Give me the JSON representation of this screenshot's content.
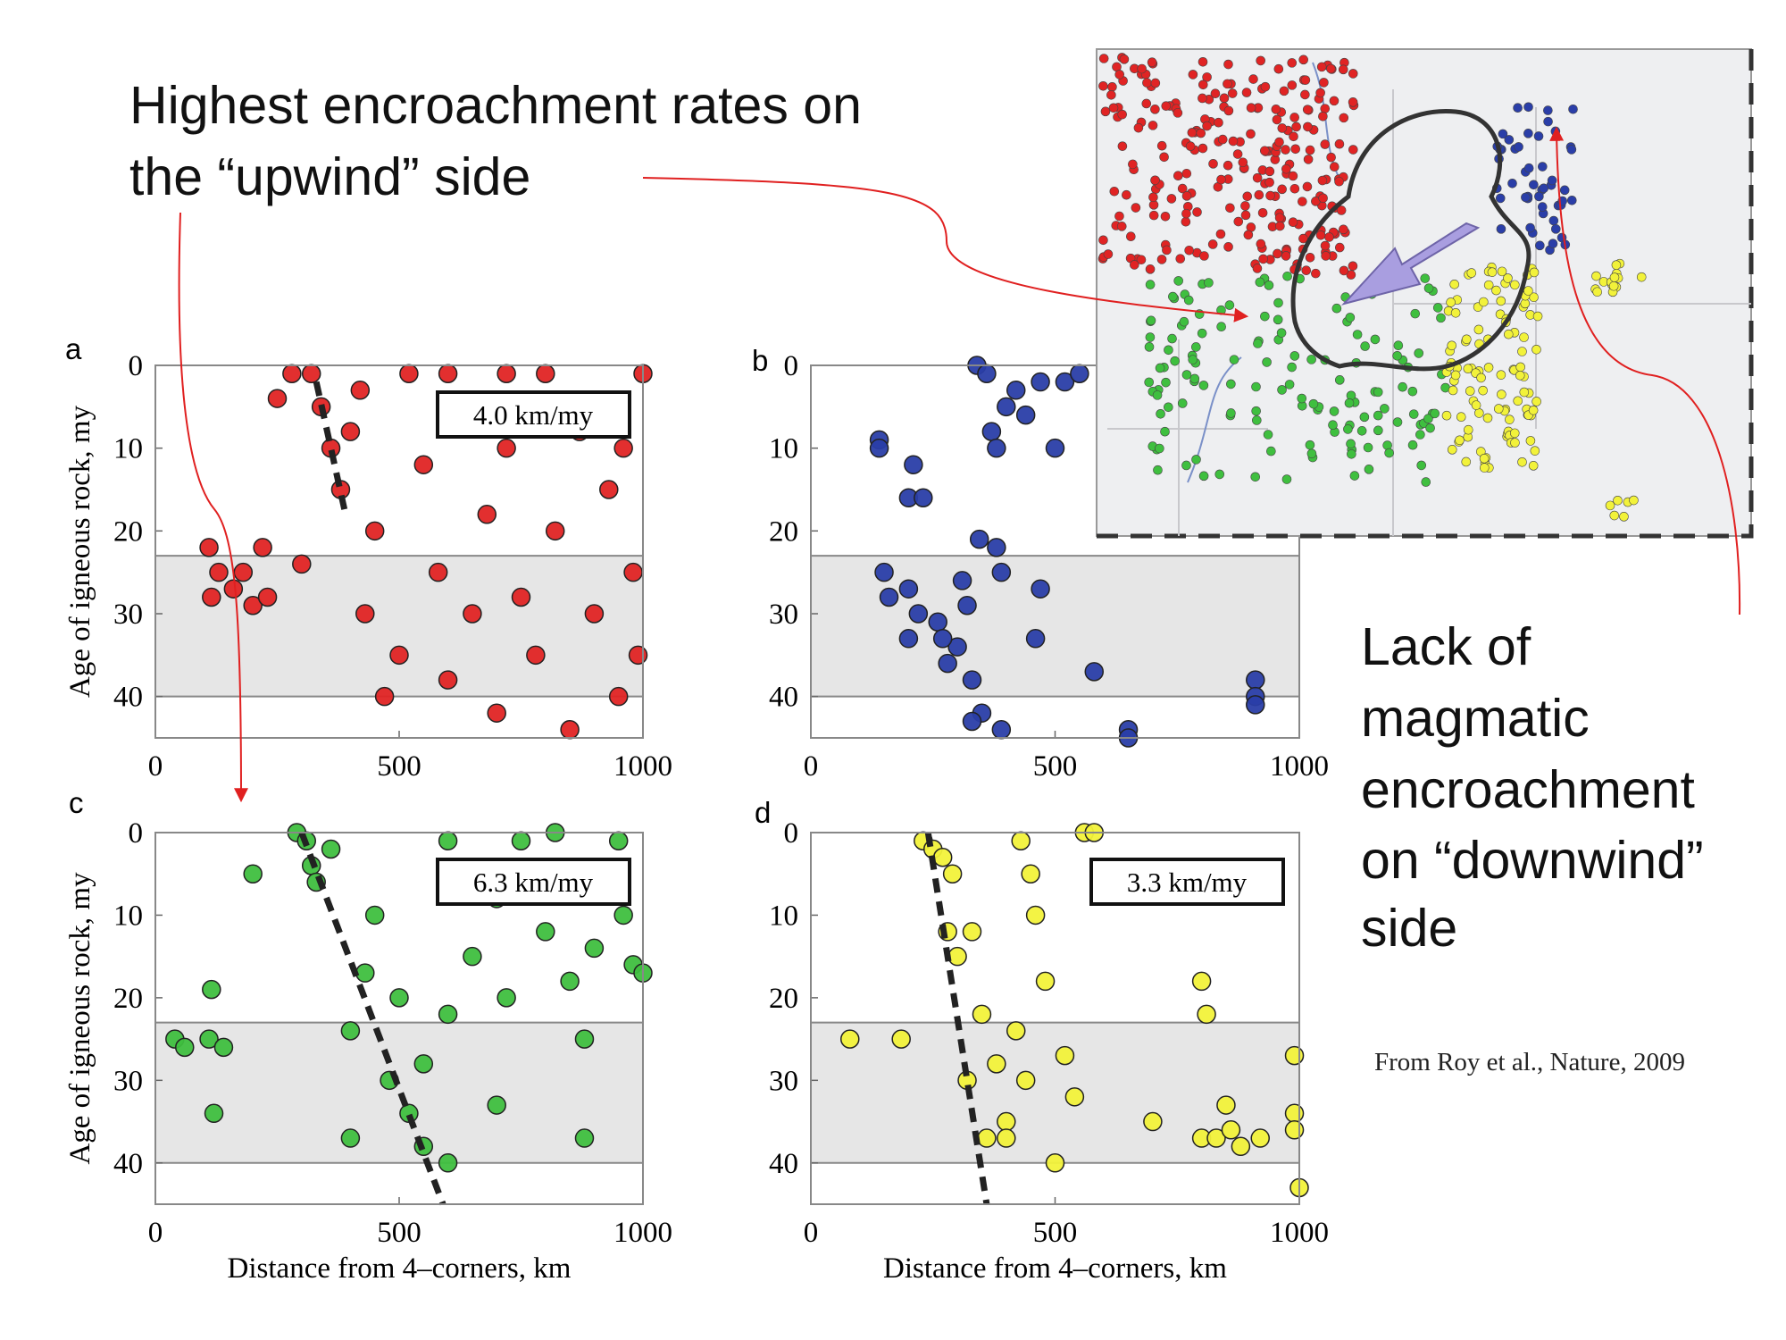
{
  "annotations": {
    "upwind": [
      "Highest encroachment rates on",
      "the “upwind” side"
    ],
    "downwind": [
      "Lack of",
      "magmatic",
      "encroachment",
      "on “downwind”",
      "side"
    ]
  },
  "source": "From Roy et al., Nature, 2009",
  "chart_data": [
    {
      "type": "scatter",
      "panel_label": "a",
      "rate_label": "4.0 km/my",
      "ylabel": "Age of igneous rock, my",
      "color": "#e02424",
      "xlim": [
        0,
        1000
      ],
      "ylim": [
        0,
        45
      ],
      "y_inverted": true,
      "xticks": [
        0,
        500,
        1000
      ],
      "yticks": [
        0,
        10,
        20,
        30,
        40
      ],
      "shaded_band": [
        23,
        40
      ],
      "trend_line": {
        "x": [
          330,
          390
        ],
        "y": [
          2,
          18
        ]
      },
      "x": [
        110,
        115,
        130,
        160,
        180,
        200,
        220,
        230,
        250,
        280,
        300,
        320,
        340,
        360,
        380,
        400,
        420,
        430,
        450,
        470,
        500,
        520,
        550,
        580,
        600,
        620,
        650,
        680,
        700,
        720,
        750,
        780,
        800,
        820,
        850,
        870,
        900,
        930,
        950,
        980,
        1000,
        990,
        960,
        720,
        600
      ],
      "y": [
        22,
        28,
        25,
        27,
        25,
        29,
        22,
        28,
        4,
        1,
        24,
        1,
        5,
        10,
        15,
        8,
        3,
        30,
        20,
        40,
        35,
        1,
        12,
        25,
        38,
        5,
        30,
        18,
        42,
        10,
        28,
        35,
        1,
        20,
        44,
        8,
        30,
        15,
        40,
        25,
        1,
        35,
        10,
        1,
        1
      ]
    },
    {
      "type": "scatter",
      "panel_label": "b",
      "color": "#2a3ea8",
      "xlim": [
        0,
        1000
      ],
      "ylim": [
        0,
        45
      ],
      "y_inverted": true,
      "xticks": [
        0,
        500,
        1000
      ],
      "yticks": [
        0,
        10,
        20,
        30,
        40
      ],
      "shaded_band": [
        23,
        40
      ],
      "x": [
        140,
        140,
        200,
        230,
        210,
        150,
        160,
        200,
        220,
        260,
        300,
        280,
        320,
        330,
        340,
        360,
        370,
        380,
        400,
        420,
        440,
        470,
        500,
        520,
        550,
        345,
        380,
        390,
        350,
        330,
        390,
        470,
        460,
        580,
        650,
        650,
        910,
        910,
        910,
        310,
        270,
        200
      ],
      "y": [
        9,
        10,
        16,
        16,
        12,
        25,
        28,
        27,
        30,
        31,
        34,
        36,
        29,
        38,
        0,
        1,
        8,
        10,
        5,
        3,
        6,
        2,
        10,
        2,
        1,
        21,
        22,
        25,
        42,
        43,
        44,
        27,
        33,
        37,
        44,
        45,
        38,
        40,
        41,
        26,
        33,
        33
      ]
    },
    {
      "type": "scatter",
      "panel_label": "c",
      "rate_label": "6.3 km/my",
      "ylabel": "Age of igneous rock, my",
      "xlabel": "Distance from 4–corners, km",
      "color": "#3fbf3f",
      "xlim": [
        0,
        1000
      ],
      "ylim": [
        0,
        45
      ],
      "y_inverted": true,
      "xticks": [
        0,
        500,
        1000
      ],
      "yticks": [
        0,
        10,
        20,
        30,
        40
      ],
      "shaded_band": [
        23,
        40
      ],
      "trend_line": {
        "x": [
          300,
          590
        ],
        "y": [
          0,
          45
        ]
      },
      "x": [
        40,
        60,
        110,
        115,
        120,
        140,
        200,
        290,
        310,
        320,
        330,
        360,
        400,
        400,
        430,
        450,
        480,
        520,
        550,
        600,
        600,
        650,
        700,
        700,
        720,
        750,
        800,
        820,
        850,
        880,
        880,
        900,
        950,
        980,
        1000,
        960,
        600,
        500,
        550
      ],
      "y": [
        25,
        26,
        25,
        19,
        34,
        26,
        5,
        0,
        1,
        4,
        6,
        2,
        24,
        37,
        17,
        10,
        30,
        34,
        38,
        40,
        22,
        15,
        8,
        33,
        20,
        1,
        12,
        0,
        18,
        37,
        25,
        14,
        1,
        16,
        17,
        10,
        1,
        20,
        28
      ]
    },
    {
      "type": "scatter",
      "panel_label": "d",
      "rate_label": "3.3 km/my",
      "xlabel": "Distance from 4–corners, km",
      "color": "#f2f23a",
      "xlim": [
        0,
        1000
      ],
      "ylim": [
        0,
        45
      ],
      "y_inverted": true,
      "xticks": [
        0,
        500,
        1000
      ],
      "yticks": [
        0,
        10,
        20,
        30,
        40
      ],
      "shaded_band": [
        23,
        40
      ],
      "trend_line": {
        "x": [
          240,
          360
        ],
        "y": [
          0,
          45
        ]
      },
      "x": [
        80,
        185,
        230,
        250,
        270,
        290,
        280,
        300,
        330,
        350,
        360,
        380,
        400,
        420,
        440,
        450,
        460,
        480,
        500,
        520,
        540,
        560,
        580,
        430,
        700,
        800,
        810,
        800,
        830,
        860,
        850,
        880,
        920,
        990,
        990,
        1000,
        990,
        400,
        320
      ],
      "y": [
        25,
        25,
        1,
        2,
        3,
        5,
        12,
        15,
        12,
        22,
        37,
        28,
        35,
        24,
        30,
        5,
        10,
        18,
        40,
        27,
        32,
        0,
        0,
        1,
        35,
        18,
        22,
        37,
        37,
        36,
        33,
        38,
        37,
        27,
        34,
        43,
        36,
        37,
        30
      ]
    }
  ]
}
